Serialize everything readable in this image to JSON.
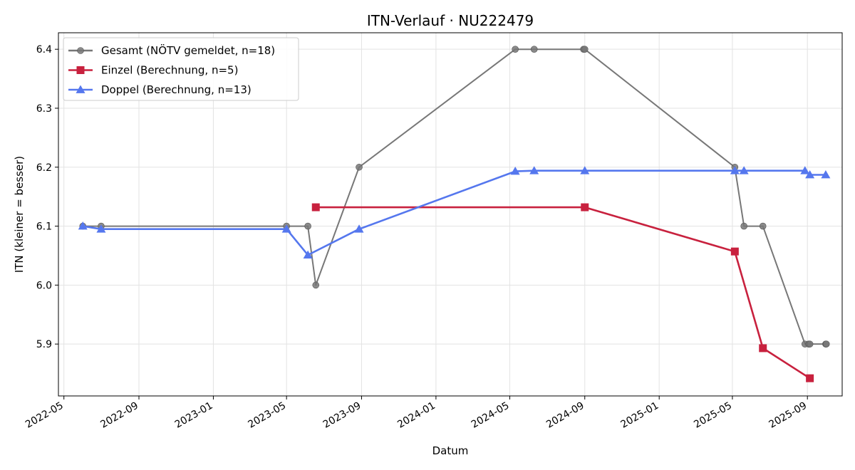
{
  "chart_data": {
    "type": "line",
    "title": "ITN-Verlauf · NU222479",
    "xlabel": "Datum",
    "ylabel": "ITN  (kleiner = besser)",
    "x_type": "date",
    "xlim": [
      "2022-04-22",
      "2025-10-28"
    ],
    "ylim": [
      5.812,
      6.428
    ],
    "x_ticks": [
      "2022-05",
      "2022-09",
      "2023-01",
      "2023-05",
      "2023-09",
      "2024-01",
      "2024-05",
      "2024-09",
      "2025-01",
      "2025-05",
      "2025-09"
    ],
    "y_ticks": [
      5.9,
      6.0,
      6.1,
      6.2,
      6.3,
      6.4
    ],
    "grid": true,
    "legend_position": "top-left",
    "series": [
      {
        "name": "Gesamt (NÖTV gemeldet, n=18)",
        "color": "#777777",
        "marker": "circle",
        "points": [
          [
            "2022-06-01",
            6.1
          ],
          [
            "2022-07-01",
            6.1
          ],
          [
            "2023-05-01",
            6.1
          ],
          [
            "2023-06-05",
            6.1
          ],
          [
            "2023-06-18",
            6.0
          ],
          [
            "2023-08-28",
            6.2
          ],
          [
            "2024-05-10",
            6.4
          ],
          [
            "2024-06-10",
            6.4
          ],
          [
            "2024-08-30",
            6.4
          ],
          [
            "2024-09-01",
            6.4
          ],
          [
            "2025-05-05",
            6.2
          ],
          [
            "2025-05-20",
            6.1
          ],
          [
            "2025-06-20",
            6.1
          ],
          [
            "2025-08-28",
            5.9
          ],
          [
            "2025-09-03",
            5.9
          ],
          [
            "2025-09-05",
            5.9
          ],
          [
            "2025-10-01",
            5.9
          ],
          [
            "2025-10-02",
            5.9
          ]
        ]
      },
      {
        "name": "Einzel (Berechnung, n=5)",
        "color": "#c8213e",
        "marker": "square",
        "points": [
          [
            "2023-06-18",
            6.132
          ],
          [
            "2024-09-01",
            6.132
          ],
          [
            "2025-05-05",
            6.057
          ],
          [
            "2025-06-20",
            5.893
          ],
          [
            "2025-09-05",
            5.842
          ]
        ]
      },
      {
        "name": "Doppel (Berechnung, n=13)",
        "color": "#5577ee",
        "marker": "triangle",
        "points": [
          [
            "2022-06-01",
            6.1
          ],
          [
            "2022-07-01",
            6.095
          ],
          [
            "2023-05-01",
            6.095
          ],
          [
            "2023-06-05",
            6.051
          ],
          [
            "2023-08-28",
            6.095
          ],
          [
            "2024-05-10",
            6.193
          ],
          [
            "2024-06-10",
            6.194
          ],
          [
            "2024-09-01",
            6.194
          ],
          [
            "2025-05-05",
            6.194
          ],
          [
            "2025-05-20",
            6.194
          ],
          [
            "2025-08-28",
            6.194
          ],
          [
            "2025-09-05",
            6.187
          ],
          [
            "2025-10-01",
            6.187
          ]
        ]
      }
    ]
  }
}
